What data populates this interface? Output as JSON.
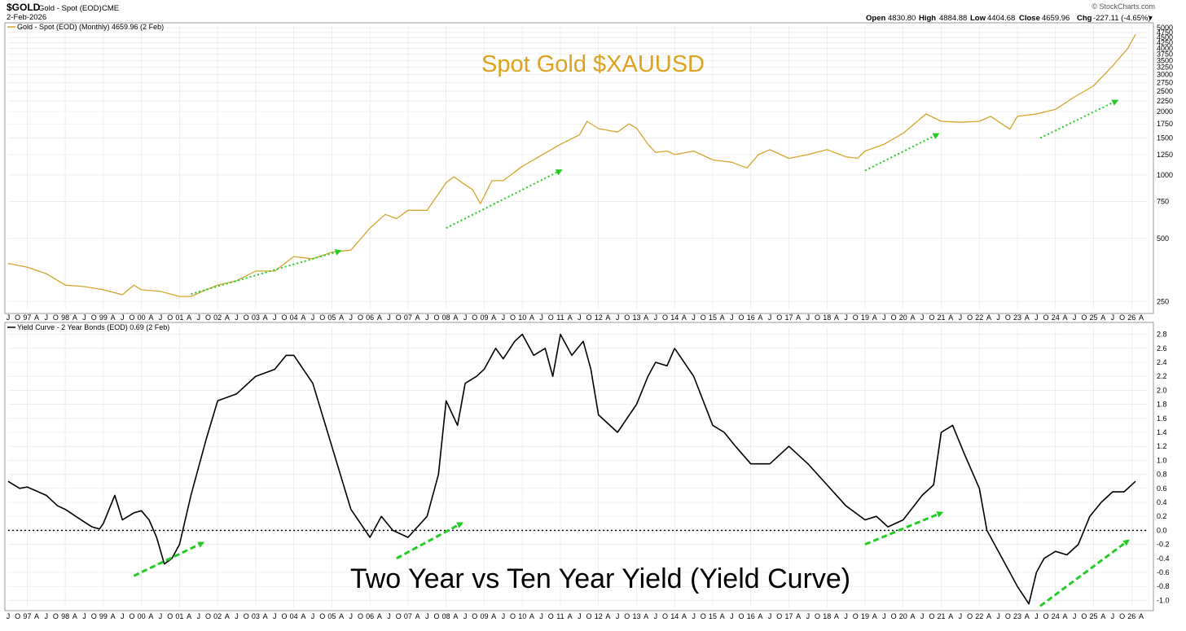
{
  "header": {
    "symbol": "$GOLD",
    "description": "Gold - Spot (EOD)",
    "exchange": "CME",
    "date": "2-Feb-2026",
    "credit": "© StockCharts.com",
    "open_label": "Open",
    "open": "4830.80",
    "high_label": "High",
    "high": "4884.88",
    "low_label": "Low",
    "low": "4404.68",
    "close_label": "Close",
    "close": "4659.96",
    "chg_label": "Chg",
    "chg": "-227.11 (-4.65%)",
    "chg_arrow": "▾"
  },
  "colors": {
    "gold": "#D4A52E",
    "title_gold": "#DDA21F",
    "curve": "#000000",
    "arrow": "#22CC22",
    "grid": "#E4E4E4"
  },
  "chart_data": [
    {
      "type": "line",
      "legend": "Gold - Spot (EOD) (Monthly) 4659.96 (2 Feb)",
      "title": "Spot Gold $XAUUSD",
      "scale": "log",
      "ylim": [
        230,
        5100
      ],
      "y_ticks": [
        "5000",
        "4750",
        "4500",
        "4250",
        "4000",
        "3750",
        "3500",
        "3250",
        "3000",
        "2750",
        "2500",
        "2250",
        "2000",
        "1750",
        "1500",
        "1250",
        "1000",
        "750",
        "500",
        "250"
      ],
      "grid": true,
      "series": [
        {
          "x": [
            1996.5,
            1997.0,
            1997.5,
            1998.0,
            1998.5,
            1999.0,
            1999.5,
            1999.8,
            2000.0,
            2000.5,
            2001.0,
            2001.3,
            2001.7,
            2002.0,
            2002.5,
            2003.0,
            2003.5,
            2004.0,
            2004.5,
            2005.0,
            2005.5,
            2006.0,
            2006.4,
            2006.7,
            2007.0,
            2007.5,
            2008.0,
            2008.2,
            2008.7,
            2008.9,
            2009.2,
            2009.5,
            2010.0,
            2010.5,
            2011.0,
            2011.5,
            2011.7,
            2012.0,
            2012.5,
            2012.8,
            2013.0,
            2013.3,
            2013.5,
            2013.8,
            2014.0,
            2014.5,
            2015.0,
            2015.5,
            2015.9,
            2016.2,
            2016.5,
            2017.0,
            2017.5,
            2018.0,
            2018.5,
            2018.8,
            2019.0,
            2019.5,
            2020.0,
            2020.6,
            2021.0,
            2021.5,
            2022.0,
            2022.3,
            2022.8,
            2023.0,
            2023.5,
            2024.0,
            2024.5,
            2025.0,
            2025.5,
            2025.9,
            2026.1
          ],
          "y": [
            380,
            365,
            340,
            300,
            295,
            285,
            270,
            300,
            285,
            280,
            265,
            265,
            285,
            300,
            315,
            350,
            350,
            410,
            400,
            430,
            440,
            560,
            650,
            620,
            680,
            680,
            920,
            980,
            850,
            730,
            940,
            940,
            1100,
            1240,
            1400,
            1550,
            1800,
            1660,
            1600,
            1750,
            1670,
            1400,
            1280,
            1300,
            1250,
            1300,
            1180,
            1150,
            1080,
            1250,
            1320,
            1200,
            1250,
            1320,
            1220,
            1200,
            1300,
            1400,
            1580,
            1950,
            1800,
            1780,
            1800,
            1900,
            1650,
            1900,
            1950,
            2050,
            2350,
            2650,
            3300,
            4000,
            4660
          ]
        }
      ]
    },
    {
      "type": "line",
      "legend": "Yield Curve - 2 Year Bonds (EOD) 0.69 (2 Feb)",
      "title": "Two Year vs Ten Year Yield (Yield Curve)",
      "ylim": [
        -1.1,
        2.9
      ],
      "y_ticks": [
        "2.8",
        "2.6",
        "2.4",
        "2.2",
        "2.0",
        "1.8",
        "1.6",
        "1.4",
        "1.2",
        "1.0",
        "0.8",
        "0.6",
        "0.4",
        "0.2",
        "0.0",
        "-0.2",
        "-0.4",
        "-0.6",
        "-0.8",
        "-1.0"
      ],
      "reference_line": 0.0,
      "grid": true,
      "series": [
        {
          "x": [
            1996.5,
            1996.8,
            1997.0,
            1997.5,
            1997.8,
            1998.0,
            1998.5,
            1998.7,
            1998.9,
            1999.0,
            1999.3,
            1999.5,
            1999.8,
            2000.0,
            2000.2,
            2000.4,
            2000.6,
            2000.8,
            2001.0,
            2001.3,
            2001.7,
            2002.0,
            2002.5,
            2003.0,
            2003.5,
            2003.8,
            2004.0,
            2004.5,
            2005.0,
            2005.5,
            2006.0,
            2006.3,
            2006.6,
            2007.0,
            2007.5,
            2007.8,
            2008.0,
            2008.3,
            2008.5,
            2008.8,
            2009.0,
            2009.3,
            2009.5,
            2009.8,
            2010.0,
            2010.3,
            2010.6,
            2010.8,
            2011.0,
            2011.3,
            2011.6,
            2011.8,
            2012.0,
            2012.5,
            2013.0,
            2013.3,
            2013.5,
            2013.8,
            2014.0,
            2014.5,
            2015.0,
            2015.3,
            2015.6,
            2016.0,
            2016.5,
            2017.0,
            2017.5,
            2018.0,
            2018.5,
            2019.0,
            2019.3,
            2019.6,
            2020.0,
            2020.5,
            2020.8,
            2021.0,
            2021.3,
            2021.6,
            2022.0,
            2022.2,
            2022.5,
            2022.8,
            2023.0,
            2023.3,
            2023.5,
            2023.7,
            2024.0,
            2024.3,
            2024.6,
            2024.9,
            2025.2,
            2025.5,
            2025.8,
            2026.1
          ],
          "y": [
            0.7,
            0.6,
            0.62,
            0.5,
            0.35,
            0.3,
            0.12,
            0.05,
            0.02,
            0.1,
            0.5,
            0.15,
            0.25,
            0.28,
            0.15,
            -0.1,
            -0.48,
            -0.4,
            -0.2,
            0.5,
            1.3,
            1.85,
            1.95,
            2.2,
            2.3,
            2.5,
            2.5,
            2.1,
            1.2,
            0.3,
            -0.1,
            0.2,
            0.0,
            -0.1,
            0.2,
            0.8,
            1.85,
            1.5,
            2.1,
            2.2,
            2.3,
            2.6,
            2.45,
            2.7,
            2.8,
            2.5,
            2.6,
            2.2,
            2.8,
            2.5,
            2.7,
            2.3,
            1.65,
            1.4,
            1.8,
            2.2,
            2.4,
            2.35,
            2.6,
            2.2,
            1.5,
            1.4,
            1.2,
            0.95,
            0.95,
            1.2,
            0.95,
            0.65,
            0.35,
            0.15,
            0.2,
            0.05,
            0.15,
            0.5,
            0.65,
            1.4,
            1.5,
            1.1,
            0.6,
            0.0,
            -0.3,
            -0.6,
            -0.8,
            -1.05,
            -0.6,
            -0.4,
            -0.3,
            -0.35,
            -0.2,
            0.2,
            0.4,
            0.55,
            0.55,
            0.7
          ]
        }
      ]
    }
  ],
  "arrows": [
    {
      "panel": 0,
      "from": [
        2001.3,
        272
      ],
      "to": [
        2005.2,
        435
      ]
    },
    {
      "panel": 0,
      "from": [
        2008.0,
        560
      ],
      "to": [
        2011.0,
        1050
      ]
    },
    {
      "panel": 0,
      "from": [
        2019.0,
        1050
      ],
      "to": [
        2020.9,
        1560
      ]
    },
    {
      "panel": 0,
      "from": [
        2023.6,
        1500
      ],
      "to": [
        2025.6,
        2250
      ]
    },
    {
      "panel": 1,
      "from": [
        1999.8,
        -0.65
      ],
      "to": [
        2001.6,
        -0.18
      ]
    },
    {
      "panel": 1,
      "from": [
        2006.7,
        -0.4
      ],
      "to": [
        2008.4,
        0.1
      ]
    },
    {
      "panel": 1,
      "from": [
        2019.0,
        -0.2
      ],
      "to": [
        2021.0,
        0.25
      ]
    },
    {
      "panel": 1,
      "from": [
        2023.6,
        -1.08
      ],
      "to": [
        2025.9,
        -0.15
      ]
    }
  ],
  "x_axis": {
    "year_labels": [
      "97",
      "98",
      "99",
      "00",
      "01",
      "02",
      "03",
      "04",
      "05",
      "06",
      "07",
      "08",
      "09",
      "10",
      "11",
      "12",
      "13",
      "14",
      "15",
      "16",
      "17",
      "18",
      "19",
      "20",
      "21",
      "22",
      "23",
      "24",
      "25",
      "26"
    ],
    "quarter_labels": [
      "A",
      "J",
      "O",
      "J"
    ]
  }
}
